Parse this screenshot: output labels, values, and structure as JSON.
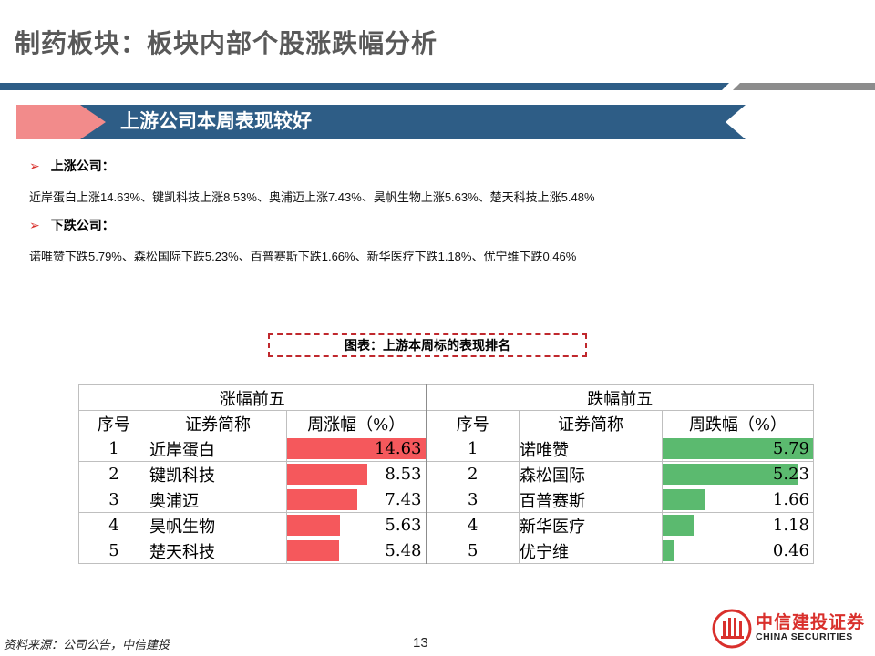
{
  "title": "制药板块：板块内部个股涨跌幅分析",
  "banner": "上游公司本周表现较好",
  "bullets": [
    {
      "label": "上涨公司：",
      "text": "近岸蛋白上涨14.63%、键凯科技上涨8.53%、奥浦迈上涨7.43%、昊帆生物上涨5.63%、楚天科技上涨5.48%"
    },
    {
      "label": "下跌公司：",
      "text": "诺唯赞下跌5.79%、森松国际下跌5.23%、百普赛斯下跌1.66%、新华医疗下跌1.18%、优宁维下跌0.46%"
    }
  ],
  "caption": "图表：上游本周标的表现排名",
  "colors": {
    "up_bar": "#f5585c",
    "down_bar": "#5bba6f",
    "accent_blue": "#2e5d86",
    "accent_red": "#d9302c"
  },
  "chart_data": {
    "type": "table",
    "groups": [
      {
        "header": "涨幅前五",
        "columns": [
          "序号",
          "证券简称",
          "周涨幅（%）"
        ],
        "rows": [
          {
            "rank": "1",
            "name": "近岸蛋白",
            "value": "14.63",
            "num": 14.63
          },
          {
            "rank": "2",
            "name": "键凯科技",
            "value": "8.53",
            "num": 8.53
          },
          {
            "rank": "3",
            "name": "奥浦迈",
            "value": "7.43",
            "num": 7.43
          },
          {
            "rank": "4",
            "name": "昊帆生物",
            "value": "5.63",
            "num": 5.63
          },
          {
            "rank": "5",
            "name": "楚天科技",
            "value": "5.48",
            "num": 5.48
          }
        ]
      },
      {
        "header": "跌幅前五",
        "columns": [
          "序号",
          "证券简称",
          "周跌幅（%）"
        ],
        "rows": [
          {
            "rank": "1",
            "name": "诺唯赞",
            "value": "5.79",
            "num": 5.79
          },
          {
            "rank": "2",
            "name": "森松国际",
            "value": "5.23",
            "num": 5.23
          },
          {
            "rank": "3",
            "name": "百普赛斯",
            "value": "1.66",
            "num": 1.66
          },
          {
            "rank": "4",
            "name": "新华医疗",
            "value": "1.18",
            "num": 1.18
          },
          {
            "rank": "5",
            "name": "优宁维",
            "value": "0.46",
            "num": 0.46
          }
        ]
      }
    ]
  },
  "footer": {
    "source": "资料来源：公司公告，中信建投",
    "page": "13"
  },
  "logo": {
    "cn": "中信建投证券",
    "en": "CHINA SECURITIES"
  }
}
